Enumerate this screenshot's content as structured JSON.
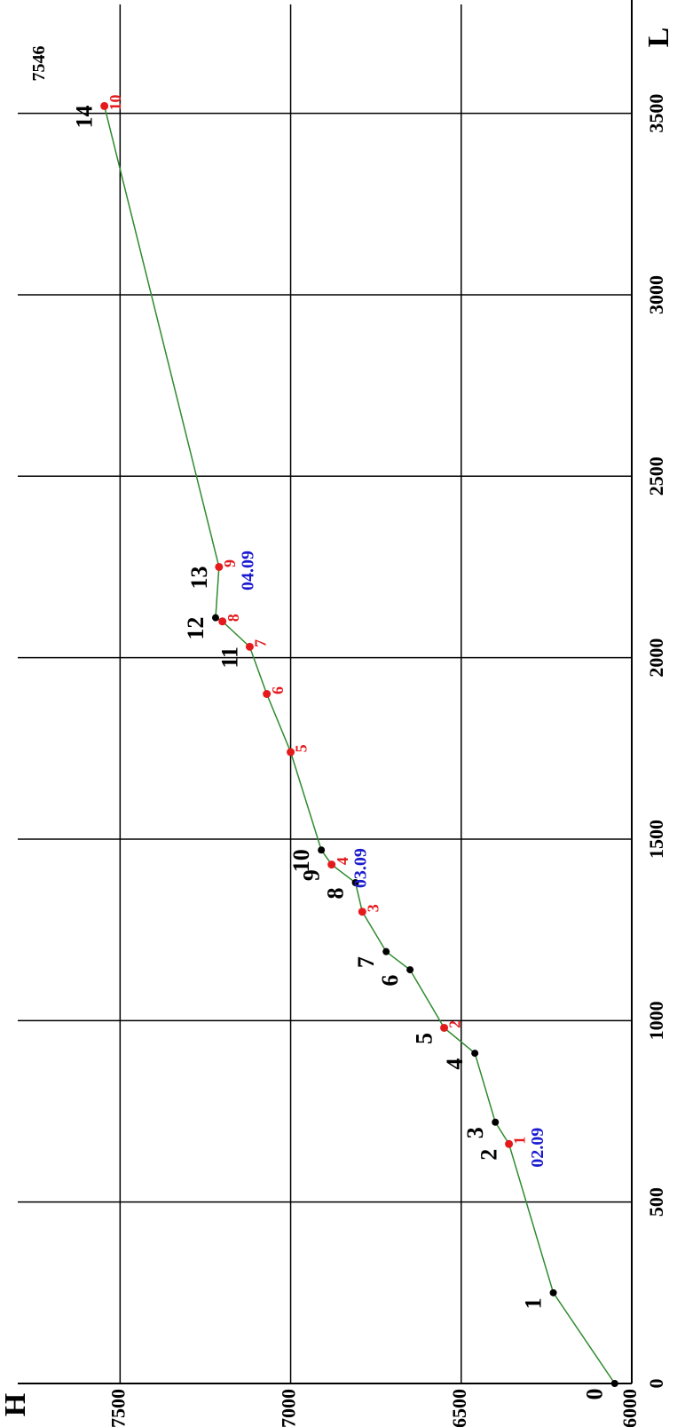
{
  "chart_data": {
    "type": "line",
    "xlabel": "L",
    "ylabel": "H",
    "xlim": [
      0,
      3800
    ],
    "xticks": [
      0,
      500,
      1000,
      1500,
      2000,
      2500,
      3000,
      3500
    ],
    "ylim": [
      6000,
      7800
    ],
    "yticks": [
      6000,
      6500,
      7000,
      7500
    ],
    "grid": true,
    "line": {
      "color": "#2e8b2e",
      "x": [
        0,
        250,
        660,
        720,
        910,
        980,
        1140,
        1190,
        1300,
        1380,
        1430,
        1470,
        1740,
        1900,
        2030,
        2100,
        2110,
        2250,
        3520
      ],
      "y": [
        6050,
        6230,
        6360,
        6400,
        6460,
        6550,
        6650,
        6720,
        6790,
        6810,
        6880,
        6910,
        7000,
        7070,
        7120,
        7200,
        7220,
        7210,
        7546
      ]
    },
    "stations": {
      "color": "#000000",
      "labels": [
        "0",
        "1",
        "2",
        "3",
        "4",
        "5",
        "6",
        "7",
        "8",
        "9",
        "10",
        "11",
        "12",
        "13",
        "14"
      ],
      "x": [
        0,
        250,
        660,
        720,
        910,
        980,
        1140,
        1190,
        1380,
        1430,
        1470,
        2030,
        2110,
        2250,
        3520
      ],
      "y": [
        6050,
        6230,
        6360,
        6400,
        6460,
        6550,
        6650,
        6720,
        6810,
        6880,
        6910,
        7120,
        7220,
        7210,
        7546
      ]
    },
    "checkpoints": {
      "color": "#e41a1c",
      "date_color": "#1a1ad0",
      "labels": [
        "1",
        "2",
        "3",
        "4",
        "5",
        "6",
        "7",
        "8",
        "9",
        "10"
      ],
      "x": [
        660,
        980,
        1300,
        1430,
        1740,
        1900,
        2030,
        2100,
        2250,
        3520
      ],
      "y": [
        6360,
        6550,
        6790,
        6880,
        7000,
        7070,
        7120,
        7200,
        7210,
        7546
      ],
      "date_labels": [
        "02.09",
        null,
        null,
        "03.09",
        null,
        null,
        null,
        null,
        "04.09",
        null
      ],
      "value_labels": [
        null,
        null,
        null,
        null,
        null,
        null,
        null,
        null,
        null,
        "7546"
      ]
    }
  }
}
